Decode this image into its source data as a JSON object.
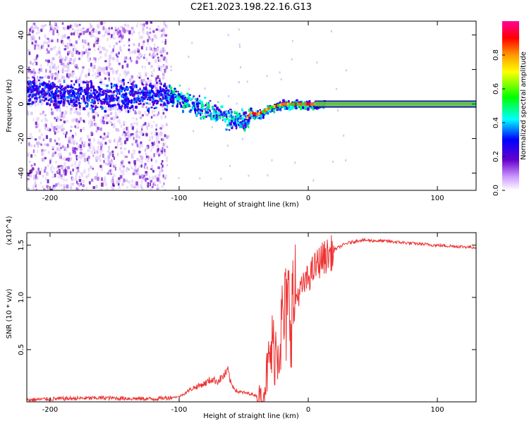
{
  "title": "C2E1.2023.198.22.16.G13",
  "chart_data": [
    {
      "type": "heatmap",
      "xlabel": "Height of straight line (km)",
      "ylabel": "Frequency (Hz)",
      "xlim": [
        -218,
        130
      ],
      "ylim": [
        -50,
        48
      ],
      "x_ticks": [
        -200,
        -100,
        0,
        100
      ],
      "y_ticks": [
        -40,
        -20,
        0,
        20,
        40
      ],
      "colorbar": {
        "label": "Normalized spectral amplitude",
        "range": [
          0,
          1
        ],
        "ticks": [
          0.0,
          0.2,
          0.4,
          0.6,
          0.8
        ],
        "colors": [
          "#ffffff",
          "#6600cc",
          "#0000ff",
          "#00ffff",
          "#00ff00",
          "#ffff00",
          "#ff9900",
          "#ff0000",
          "#ff0099"
        ]
      },
      "ridge": {
        "x": [
          -215,
          -180,
          -150,
          -120,
          -100,
          -90,
          -80,
          -70,
          -60,
          -50,
          -45,
          -40,
          -30,
          -20,
          -10,
          0,
          10,
          130
        ],
        "frequency": [
          8,
          6,
          5,
          6,
          5,
          0,
          -3,
          -5,
          -8,
          -10,
          -5,
          -6,
          -2,
          0,
          0,
          0,
          0,
          0
        ]
      },
      "noise_region_x": [
        -218,
        -110
      ],
      "carrier_frequency": 0
    },
    {
      "type": "line",
      "xlabel": "Height of straight line (km)",
      "ylabel": "SNR (10 * v/v)",
      "y_scale_label": "(x10^4)",
      "xlim": [
        -218,
        130
      ],
      "ylim": [
        0,
        1.62
      ],
      "x_ticks": [
        -200,
        -100,
        0,
        100
      ],
      "y_ticks": [
        0.5,
        1.0,
        1.5
      ],
      "series": [
        {
          "color": "#ee3333",
          "x": [
            -218,
            -200,
            -160,
            -120,
            -100,
            -95,
            -90,
            -80,
            -75,
            -70,
            -65,
            -62,
            -60,
            -55,
            -50,
            -45,
            -40,
            -35,
            -32,
            -28,
            -25,
            -22,
            -20,
            -15,
            -10,
            -5,
            0,
            5,
            10,
            20,
            30,
            40,
            60,
            80,
            100,
            130
          ],
          "y": [
            0.02,
            0.03,
            0.04,
            0.03,
            0.05,
            0.09,
            0.13,
            0.18,
            0.22,
            0.2,
            0.26,
            0.3,
            0.18,
            0.1,
            0.09,
            0.08,
            0.06,
            0.06,
            0.3,
            0.55,
            0.55,
            0.65,
            0.8,
            0.95,
            1.0,
            1.1,
            1.2,
            1.3,
            1.38,
            1.46,
            1.52,
            1.55,
            1.54,
            1.52,
            1.5,
            1.48
          ]
        }
      ]
    }
  ]
}
